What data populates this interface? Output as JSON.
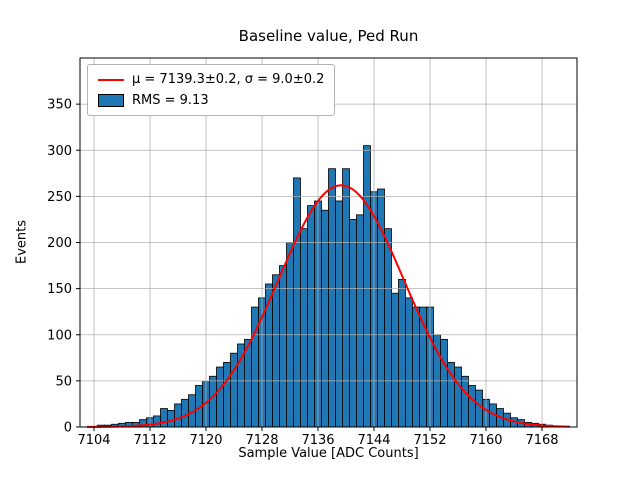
{
  "chart_data": {
    "type": "bar",
    "subtype": "histogram-with-gaussian-fit",
    "title": "Baseline value, Ped Run",
    "xlabel": "Sample Value [ADC Counts]",
    "ylabel": "Events",
    "xlim": [
      7102,
      7173
    ],
    "ylim": [
      0,
      400
    ],
    "xticks": [
      7104,
      7112,
      7120,
      7128,
      7136,
      7144,
      7152,
      7160,
      7168
    ],
    "yticks": [
      0,
      50,
      100,
      150,
      200,
      250,
      300,
      350
    ],
    "grid": true,
    "bar_color": "#1f77b4",
    "bar_edge_color": "#000000",
    "grid_color": "#b0b0b0",
    "fit_color": "#ff0000",
    "fit": {
      "amplitude": 262,
      "mu": 7139.3,
      "sigma": 9.0
    },
    "bin_start": 7104.5,
    "bin_width": 1,
    "counts": [
      2,
      2,
      3,
      4,
      5,
      5,
      8,
      10,
      12,
      20,
      18,
      25,
      30,
      35,
      45,
      50,
      55,
      65,
      70,
      80,
      90,
      95,
      130,
      140,
      155,
      165,
      175,
      200,
      270,
      215,
      240,
      245,
      235,
      280,
      245,
      280,
      225,
      230,
      305,
      255,
      258,
      215,
      145,
      160,
      140,
      130,
      130,
      130,
      100,
      95,
      70,
      65,
      55,
      45,
      40,
      30,
      25,
      20,
      15,
      10,
      8,
      5,
      4,
      3,
      2,
      1
    ],
    "legend": {
      "entries": [
        {
          "type": "line",
          "color": "#ff0000",
          "label": "μ = 7139.3±0.2, σ = 9.0±0.2"
        },
        {
          "type": "patch",
          "color": "#1f77b4",
          "label": "RMS = 9.13"
        }
      ]
    }
  }
}
